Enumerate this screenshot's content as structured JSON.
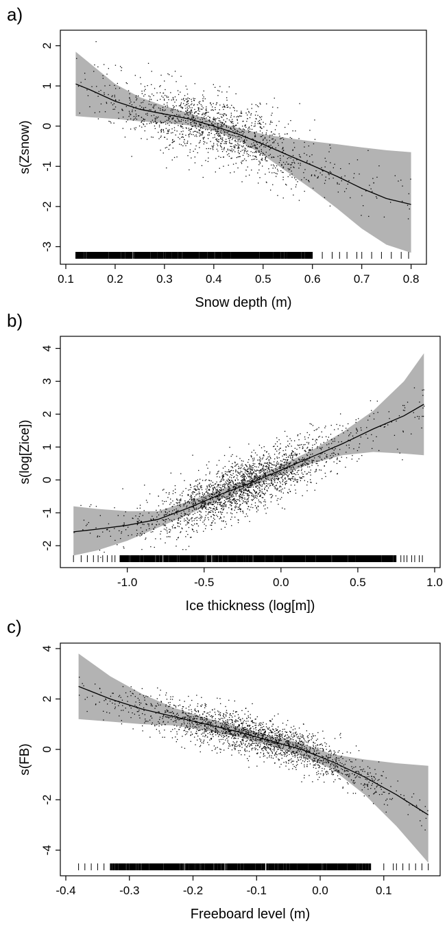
{
  "figure": {
    "background": "#ffffff",
    "band_color": "#b3b3b3",
    "line_color": "#000000",
    "point_color": "#000000"
  },
  "chart_data": [
    {
      "type": "scatter",
      "panel_label": "a)",
      "xlabel": "Snow depth (m)",
      "ylabel": "s(Zsnow)",
      "xlim": [
        0.1,
        0.82
      ],
      "ylim": [
        -3.3,
        2.25
      ],
      "x_ticks": [
        0.1,
        0.2,
        0.3,
        0.4,
        0.5,
        0.6,
        0.7,
        0.8
      ],
      "x_tick_labels": [
        "0.1",
        "0.2",
        "0.3",
        "0.4",
        "0.5",
        "0.6",
        "0.7",
        "0.8"
      ],
      "y_ticks": [
        -3,
        -2,
        -1,
        0,
        1,
        2
      ],
      "y_tick_labels": [
        "-3",
        "-2",
        "-1",
        "0",
        "1",
        "2"
      ],
      "grid": false,
      "smooth": {
        "x": [
          0.12,
          0.15,
          0.2,
          0.25,
          0.3,
          0.35,
          0.4,
          0.45,
          0.5,
          0.55,
          0.6,
          0.65,
          0.7,
          0.75,
          0.8
        ],
        "fit": [
          1.05,
          0.9,
          0.62,
          0.42,
          0.3,
          0.18,
          0.0,
          -0.2,
          -0.45,
          -0.72,
          -0.98,
          -1.25,
          -1.55,
          -1.8,
          -1.95
        ],
        "upper": [
          1.85,
          1.55,
          1.05,
          0.72,
          0.5,
          0.32,
          0.12,
          -0.05,
          -0.2,
          -0.3,
          -0.38,
          -0.45,
          -0.53,
          -0.6,
          -0.65
        ],
        "lower": [
          0.25,
          0.22,
          0.18,
          0.12,
          0.08,
          0.02,
          -0.12,
          -0.35,
          -0.72,
          -1.15,
          -1.58,
          -2.05,
          -2.55,
          -2.95,
          -3.15
        ]
      },
      "points": {
        "x_min": 0.12,
        "x_max": 0.8,
        "x_center": 0.4,
        "x_spread": 0.1,
        "slope": -4.4,
        "intercept": 1.76,
        "noise_sd": 0.42,
        "count": 1500
      },
      "rug": {
        "x_min": 0.12,
        "x_max": 0.8,
        "dense_from": 0.12,
        "dense_to": 0.6,
        "sparse": [
          0.62,
          0.64,
          0.655,
          0.67,
          0.69,
          0.7,
          0.72,
          0.74,
          0.76,
          0.78,
          0.795
        ]
      }
    },
    {
      "type": "scatter",
      "panel_label": "b)",
      "xlabel": "Ice thickness (log[m])",
      "ylabel": "s(log[Zice])",
      "xlim": [
        -1.4,
        1.0
      ],
      "ylim": [
        -2.5,
        4.2
      ],
      "x_ticks": [
        -1.0,
        -0.5,
        0.0,
        0.5,
        1.0
      ],
      "x_tick_labels": [
        "-1.0",
        "-0.5",
        "0.0",
        "0.5",
        "1.0"
      ],
      "y_ticks": [
        -2,
        -1,
        0,
        1,
        2,
        3,
        4
      ],
      "y_tick_labels": [
        "-2",
        "-1",
        "0",
        "1",
        "2",
        "3",
        "4"
      ],
      "grid": false,
      "smooth": {
        "x": [
          -1.35,
          -1.2,
          -1.0,
          -0.8,
          -0.6,
          -0.4,
          -0.2,
          0.0,
          0.2,
          0.4,
          0.6,
          0.8,
          0.93
        ],
        "fit": [
          -1.58,
          -1.5,
          -1.38,
          -1.2,
          -0.85,
          -0.45,
          -0.1,
          0.3,
          0.7,
          1.1,
          1.55,
          1.95,
          2.3
        ],
        "upper": [
          -0.8,
          -0.88,
          -0.95,
          -0.95,
          -0.65,
          -0.3,
          0.02,
          0.45,
          0.9,
          1.45,
          2.1,
          3.0,
          3.85
        ],
        "lower": [
          -2.3,
          -2.15,
          -1.85,
          -1.45,
          -1.05,
          -0.6,
          -0.22,
          0.15,
          0.5,
          0.75,
          0.85,
          0.8,
          0.75
        ]
      },
      "points": {
        "x_min": -1.35,
        "x_max": 0.93,
        "x_center": -0.25,
        "x_spread": 0.3,
        "slope": 1.85,
        "intercept": 0.2,
        "noise_sd": 0.42,
        "count": 2200
      },
      "rug": {
        "x_min": -1.35,
        "x_max": 0.93,
        "dense_from": -1.05,
        "dense_to": 0.75,
        "sparse": [
          -1.35,
          -1.3,
          -1.26,
          -1.22,
          -1.19,
          -1.16,
          -1.13,
          -1.1,
          -1.08,
          0.78,
          0.8,
          0.82,
          0.85,
          0.87,
          0.9,
          0.92
        ]
      }
    },
    {
      "type": "scatter",
      "panel_label": "c)",
      "xlabel": "Freeboard level (m)",
      "ylabel": "s(FB)",
      "xlim": [
        -0.4,
        0.18
      ],
      "ylim": [
        -4.8,
        4.0
      ],
      "x_ticks": [
        -0.4,
        -0.3,
        -0.2,
        -0.1,
        0.0,
        0.1
      ],
      "x_tick_labels": [
        "-0.4",
        "-0.3",
        "-0.2",
        "-0.1",
        "0.0",
        "0.1"
      ],
      "y_ticks": [
        -4,
        -2,
        0,
        2,
        4
      ],
      "y_tick_labels": [
        "-4",
        "-2",
        "0",
        "2",
        "4"
      ],
      "grid": false,
      "smooth": {
        "x": [
          -0.38,
          -0.33,
          -0.28,
          -0.23,
          -0.18,
          -0.13,
          -0.08,
          -0.03,
          0.02,
          0.07,
          0.12,
          0.17
        ],
        "fit": [
          2.5,
          2.0,
          1.6,
          1.3,
          1.0,
          0.7,
          0.35,
          0.0,
          -0.5,
          -1.1,
          -1.8,
          -2.6
        ],
        "upper": [
          3.8,
          2.9,
          2.2,
          1.65,
          1.25,
          0.9,
          0.55,
          0.25,
          -0.2,
          -0.4,
          -0.55,
          -0.65
        ],
        "lower": [
          1.2,
          1.1,
          1.0,
          0.95,
          0.75,
          0.5,
          0.15,
          -0.25,
          -0.8,
          -1.8,
          -3.05,
          -4.5
        ]
      },
      "points": {
        "x_min": -0.38,
        "x_max": 0.17,
        "x_center": -0.1,
        "x_spread": 0.09,
        "slope": -7.0,
        "intercept": -0.3,
        "noise_sd": 0.42,
        "count": 2000
      },
      "rug": {
        "x_min": -0.38,
        "x_max": 0.17,
        "dense_from": -0.33,
        "dense_to": 0.08,
        "sparse": [
          -0.38,
          -0.37,
          -0.36,
          -0.35,
          -0.34,
          0.1,
          0.115,
          0.12,
          0.13,
          0.14,
          0.15,
          0.16,
          0.17
        ]
      }
    }
  ]
}
